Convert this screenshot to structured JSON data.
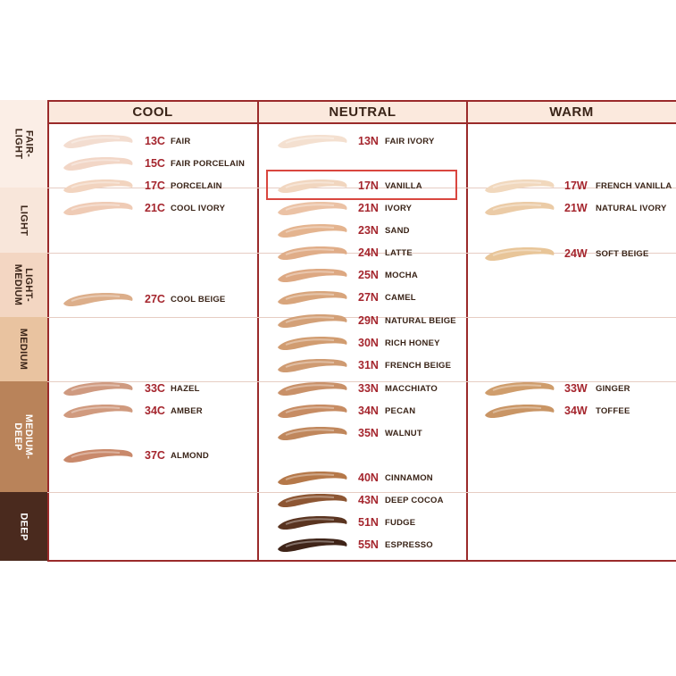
{
  "header": {
    "cool": "COOL",
    "neutral": "NEUTRAL",
    "warm": "WARM"
  },
  "depth_labels": [
    {
      "text": "FAIR-\nLIGHT",
      "bg": "#fbeee6",
      "fg": "#3a2418"
    },
    {
      "text": "LIGHT",
      "bg": "#f8e6da",
      "fg": "#3a2418"
    },
    {
      "text": "LIGHT-\nMEDIUM",
      "bg": "#f3d6c2",
      "fg": "#3a2418"
    },
    {
      "text": "MEDIUM",
      "bg": "#e9c3a0",
      "fg": "#3a2418"
    },
    {
      "text": "MEDIUM-\nDEEP",
      "bg": "#b9835a",
      "fg": "#ffffff"
    },
    {
      "text": "DEEP",
      "bg": "#4a2a1e",
      "fg": "#ffffff"
    }
  ],
  "cool": [
    {
      "code": "13C",
      "name": "FAIR",
      "color": "#f3ddd0"
    },
    {
      "code": "15C",
      "name": "FAIR PORCELAIN",
      "color": "#f2d6c6"
    },
    {
      "code": "17C",
      "name": "PORCELAIN",
      "color": "#f2d4bf"
    },
    {
      "code": "21C",
      "name": "COOL IVORY",
      "color": "#efcbb5"
    },
    {
      "code": "27C",
      "name": "COOL BEIGE",
      "color": "#dcae8a"
    },
    {
      "code": "33C",
      "name": "HAZEL",
      "color": "#cf9a80"
    },
    {
      "code": "34C",
      "name": "AMBER",
      "color": "#d09a7e"
    },
    {
      "code": "37C",
      "name": "ALMOND",
      "color": "#c9896b"
    }
  ],
  "neutral": [
    {
      "code": "13N",
      "name": "FAIR IVORY",
      "color": "#f4e0d0"
    },
    {
      "code": "17N",
      "name": "VANILLA",
      "color": "#f1d6bf"
    },
    {
      "code": "21N",
      "name": "IVORY",
      "color": "#ebc2a5"
    },
    {
      "code": "23N",
      "name": "SAND",
      "color": "#e4b48f"
    },
    {
      "code": "24N",
      "name": "LATTE",
      "color": "#e0ad88"
    },
    {
      "code": "25N",
      "name": "MOCHA",
      "color": "#dda882"
    },
    {
      "code": "27N",
      "name": "CAMEL",
      "color": "#d8a57c"
    },
    {
      "code": "29N",
      "name": "NATURAL BEIGE",
      "color": "#d3a077"
    },
    {
      "code": "30N",
      "name": "RICH HONEY",
      "color": "#d19c70"
    },
    {
      "code": "31N",
      "name": "FRENCH BEIGE",
      "color": "#cf9b72"
    },
    {
      "code": "33N",
      "name": "MACCHIATO",
      "color": "#c99169"
    },
    {
      "code": "34N",
      "name": "PECAN",
      "color": "#c78c63"
    },
    {
      "code": "35N",
      "name": "WALNUT",
      "color": "#c0875c"
    },
    {
      "code": "40N",
      "name": "CINNAMON",
      "color": "#b57849"
    },
    {
      "code": "43N",
      "name": "DEEP COCOA",
      "color": "#8d5633"
    },
    {
      "code": "51N",
      "name": "FUDGE",
      "color": "#5a3420"
    },
    {
      "code": "55N",
      "name": "ESPRESSO",
      "color": "#3f2418"
    }
  ],
  "warm": [
    {
      "code": "17W",
      "name": "FRENCH VANILLA",
      "color": "#f1d8bd"
    },
    {
      "code": "21W",
      "name": "NATURAL IVORY",
      "color": "#ebcba6"
    },
    {
      "code": "24W",
      "name": "SOFT BEIGE",
      "color": "#e8c598"
    },
    {
      "code": "33W",
      "name": "GINGER",
      "color": "#cf9d6c"
    },
    {
      "code": "34W",
      "name": "TOFFEE",
      "color": "#c99565"
    }
  ],
  "colors": {
    "accent": "#9a2a2a",
    "code_text": "#a5262e",
    "highlight": "#d9463f",
    "header_bg": "#fbe9dd"
  }
}
